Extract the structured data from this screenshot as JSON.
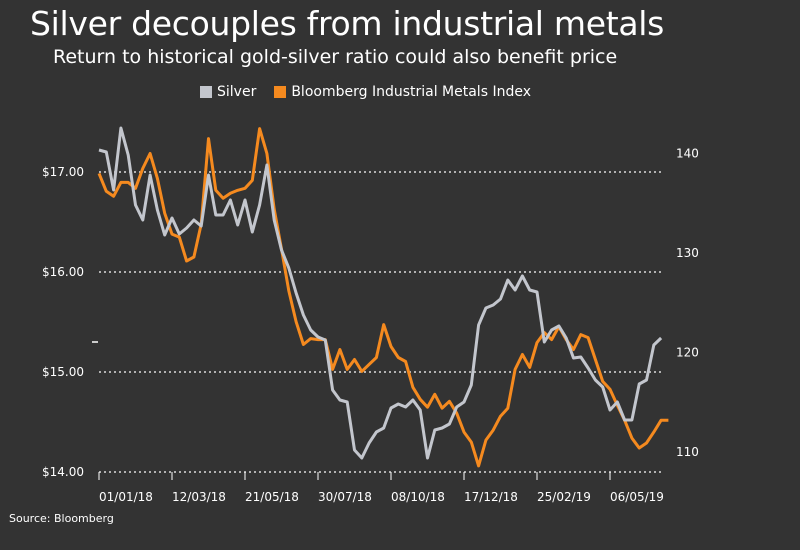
{
  "chart_data": {
    "type": "line",
    "title": "Silver decouples from industrial metals",
    "subtitle": "Return to historical gold-silver ratio could also benefit price",
    "source": "Source: Bloomberg",
    "legend_position": "top",
    "grid": "horizontal dotted",
    "x": [
      "2018-01-01",
      "2018-01-08",
      "2018-01-15",
      "2018-01-22",
      "2018-01-29",
      "2018-02-05",
      "2018-02-12",
      "2018-02-19",
      "2018-02-26",
      "2018-03-05",
      "2018-03-12",
      "2018-03-19",
      "2018-03-26",
      "2018-04-02",
      "2018-04-09",
      "2018-04-16",
      "2018-04-23",
      "2018-04-30",
      "2018-05-07",
      "2018-05-14",
      "2018-05-21",
      "2018-05-28",
      "2018-06-04",
      "2018-06-11",
      "2018-06-18",
      "2018-06-25",
      "2018-07-02",
      "2018-07-09",
      "2018-07-16",
      "2018-07-23",
      "2018-07-30",
      "2018-08-06",
      "2018-08-13",
      "2018-08-20",
      "2018-08-27",
      "2018-09-03",
      "2018-09-10",
      "2018-09-17",
      "2018-09-24",
      "2018-10-01",
      "2018-10-08",
      "2018-10-15",
      "2018-10-22",
      "2018-10-29",
      "2018-11-05",
      "2018-11-12",
      "2018-11-19",
      "2018-11-26",
      "2018-12-03",
      "2018-12-10",
      "2018-12-17",
      "2018-12-24",
      "2018-12-31",
      "2019-01-07",
      "2019-01-14",
      "2019-01-21",
      "2019-01-28",
      "2019-02-04",
      "2019-02-11",
      "2019-02-18",
      "2019-02-25",
      "2019-03-04",
      "2019-03-11",
      "2019-03-18",
      "2019-03-25",
      "2019-04-01",
      "2019-04-08",
      "2019-04-15",
      "2019-04-22",
      "2019-04-29",
      "2019-05-06",
      "2019-05-13",
      "2019-05-20",
      "2019-05-27",
      "2019-06-03",
      "2019-06-10",
      "2019-06-17",
      "2019-06-24",
      "2019-07-01"
    ],
    "x_ticks": [
      "01/01/18",
      "12/03/18",
      "21/05/18",
      "30/07/18",
      "08/10/18",
      "17/12/18",
      "25/02/19",
      "06/05/19"
    ],
    "x_tick_dates": [
      "2018-01-01",
      "2018-03-12",
      "2018-05-21",
      "2018-07-30",
      "2018-10-08",
      "2018-12-17",
      "2019-02-25",
      "2019-05-06"
    ],
    "y_left": {
      "ticks": [
        14,
        15,
        16,
        17
      ],
      "tick_labels": [
        "$14.00",
        "$15.00",
        "$16.00",
        "$17.00"
      ],
      "ylim": [
        14,
        18
      ]
    },
    "y_right": {
      "ticks": [
        110,
        120,
        130,
        140
      ],
      "tick_labels": [
        "110",
        "120",
        "130",
        "140"
      ],
      "ylim": [
        108,
        148
      ]
    },
    "series": [
      {
        "name": "Silver",
        "axis": "left",
        "color": "#c3c6cd",
        "values": [
          17.22,
          17.2,
          16.82,
          17.44,
          17.17,
          16.67,
          16.52,
          16.97,
          16.62,
          16.37,
          16.54,
          16.38,
          16.44,
          16.52,
          16.46,
          16.97,
          16.57,
          16.57,
          16.72,
          16.47,
          16.72,
          16.4,
          16.67,
          17.07,
          16.52,
          16.22,
          16.04,
          15.79,
          15.57,
          15.42,
          15.35,
          15.32,
          14.82,
          14.72,
          14.7,
          14.22,
          14.14,
          14.29,
          14.4,
          14.44,
          14.64,
          14.68,
          14.65,
          14.72,
          14.62,
          14.14,
          14.42,
          14.44,
          14.48,
          14.65,
          14.7,
          14.87,
          15.47,
          15.64,
          15.67,
          15.73,
          15.92,
          15.82,
          15.96,
          15.82,
          15.8,
          15.3,
          15.42,
          15.46,
          15.34,
          15.14,
          15.15,
          15.04,
          14.92,
          14.85,
          14.62,
          14.7,
          14.52,
          14.52,
          14.88,
          14.92,
          15.27,
          15.34,
          null
        ]
      },
      {
        "name": "Bloomberg Industrial Metals Index",
        "axis": "right",
        "color": "#f58a1f",
        "values": [
          138.0,
          136.2,
          135.7,
          137.1,
          137.1,
          136.5,
          138.5,
          140.0,
          137.5,
          134.0,
          131.9,
          131.6,
          129.2,
          129.6,
          132.9,
          141.5,
          136.3,
          135.5,
          136.0,
          136.3,
          136.5,
          137.3,
          142.5,
          140.0,
          134.4,
          130.4,
          126.2,
          123.1,
          120.8,
          121.4,
          121.3,
          121.3,
          118.3,
          120.3,
          118.3,
          119.3,
          118.1,
          118.8,
          119.5,
          122.8,
          120.6,
          119.5,
          119.1,
          116.5,
          115.3,
          114.5,
          115.8,
          114.4,
          115.1,
          113.9,
          112.0,
          111.0,
          108.6,
          111.2,
          112.2,
          113.6,
          114.4,
          118.3,
          119.8,
          118.5,
          121.0,
          122.0,
          121.3,
          122.6,
          121.3,
          120.3,
          121.8,
          121.5,
          119.3,
          117.1,
          116.3,
          114.7,
          113.2,
          111.4,
          110.4,
          110.9,
          112.0,
          113.2,
          113.2
        ]
      }
    ]
  }
}
